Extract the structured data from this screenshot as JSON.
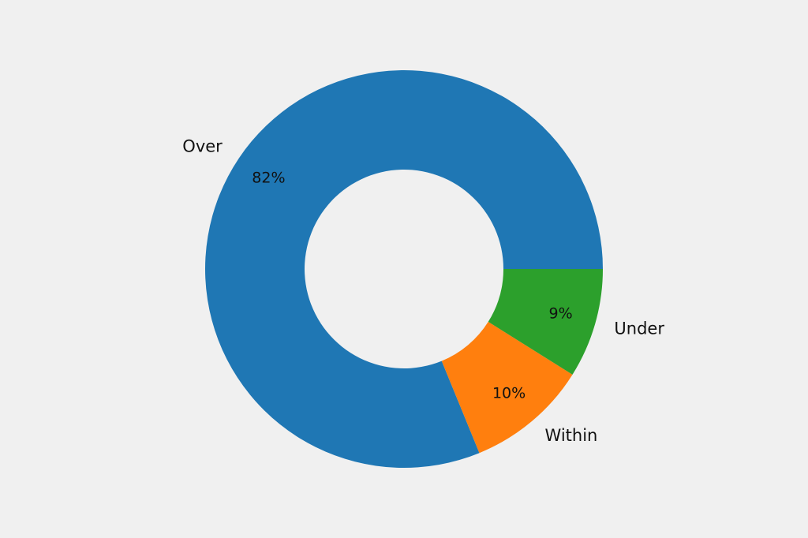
{
  "chart_data": {
    "type": "pie",
    "style": "donut",
    "categories": [
      "Over",
      "Within",
      "Under"
    ],
    "values": [
      82,
      10,
      9
    ],
    "value_labels": [
      "82%",
      "10%",
      "9%"
    ],
    "colors": [
      "#1f77b4",
      "#ff7f0e",
      "#2ca02c"
    ],
    "background": "#f0f0f0",
    "legend": false
  }
}
